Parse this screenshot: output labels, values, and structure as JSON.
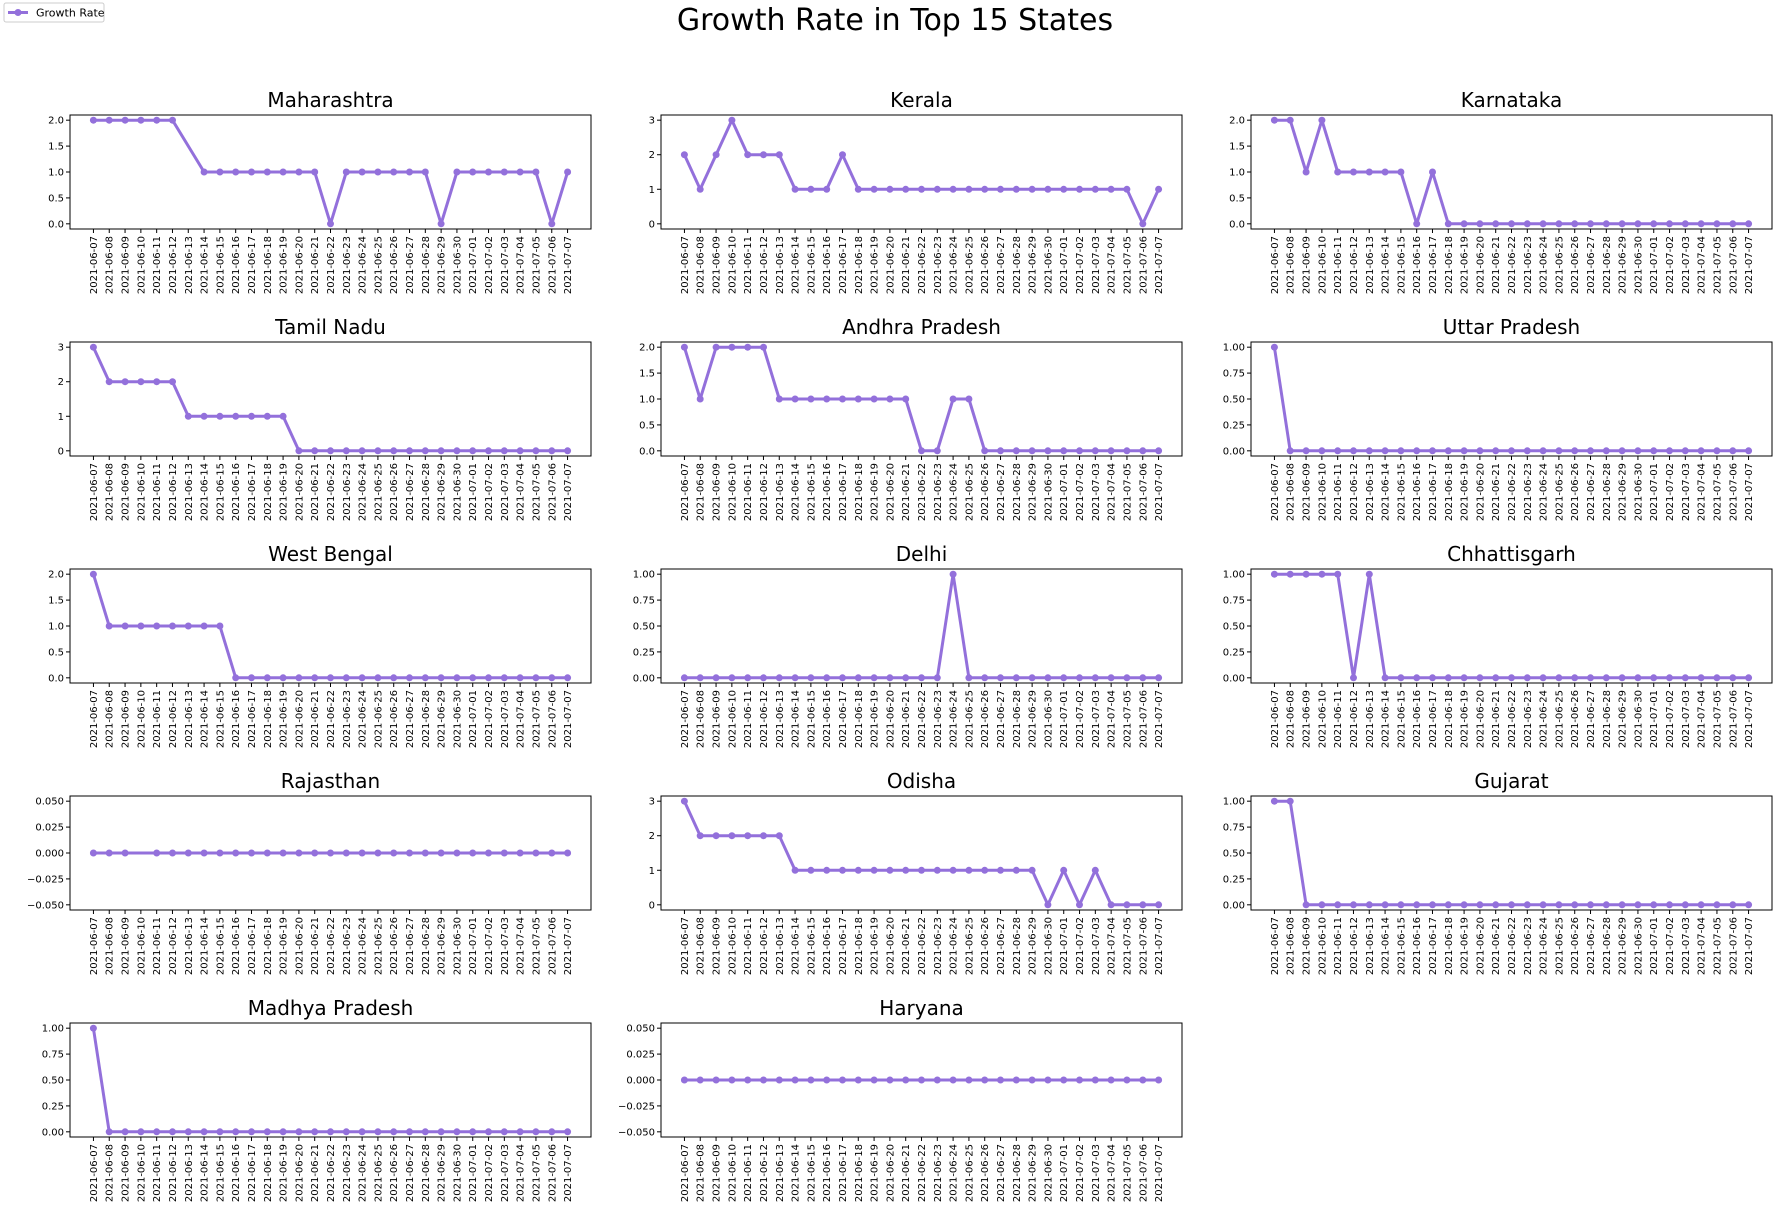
{
  "title": "Growth Rate in Top 15 States",
  "legend": {
    "label": "Growth Rate",
    "position": "top-left"
  },
  "colors": {
    "line": "#9370db",
    "axis": "#000000",
    "text": "#000000"
  },
  "chart_data": {
    "type": "line",
    "dates": [
      "2021-06-07",
      "2021-06-08",
      "2021-06-09",
      "2021-06-10",
      "2021-06-11",
      "2021-06-12",
      "2021-06-13",
      "2021-06-14",
      "2021-06-15",
      "2021-06-16",
      "2021-06-17",
      "2021-06-18",
      "2021-06-19",
      "2021-06-20",
      "2021-06-21",
      "2021-06-22",
      "2021-06-23",
      "2021-06-24",
      "2021-06-25",
      "2021-06-26",
      "2021-06-27",
      "2021-06-28",
      "2021-06-29",
      "2021-06-30",
      "2021-07-01",
      "2021-07-02",
      "2021-07-03",
      "2021-07-04",
      "2021-07-05",
      "2021-07-06",
      "2021-07-07"
    ],
    "grid": false,
    "subplots": [
      {
        "title": "Maharashtra",
        "series": [
          {
            "name": "Growth Rate",
            "x": [
              "2021-06-07",
              "2021-06-08",
              "2021-06-09",
              "2021-06-10",
              "2021-06-11",
              "2021-06-12",
              "2021-06-14",
              "2021-06-15",
              "2021-06-16",
              "2021-06-17",
              "2021-06-18",
              "2021-06-19",
              "2021-06-20",
              "2021-06-21",
              "2021-06-22",
              "2021-06-23",
              "2021-06-24",
              "2021-06-25",
              "2021-06-26",
              "2021-06-27",
              "2021-06-28",
              "2021-06-29",
              "2021-06-30",
              "2021-07-01",
              "2021-07-02",
              "2021-07-03",
              "2021-07-04",
              "2021-07-05",
              "2021-07-06",
              "2021-07-07"
            ],
            "values": [
              2,
              2,
              2,
              2,
              2,
              2,
              1,
              1,
              1,
              1,
              1,
              1,
              1,
              1,
              0,
              1,
              1,
              1,
              1,
              1,
              1,
              0,
              1,
              1,
              1,
              1,
              1,
              1,
              0,
              1
            ]
          }
        ],
        "yticks": [
          0.0,
          0.5,
          1.0,
          1.5,
          2.0
        ],
        "ytick_labels": [
          "0.0",
          "0.5",
          "1.0",
          "1.5",
          "2.0"
        ],
        "ylim": [
          -0.1,
          2.1
        ]
      },
      {
        "title": "Kerala",
        "series": [
          {
            "name": "Growth Rate",
            "x": "all",
            "values": [
              2,
              1,
              2,
              3,
              2,
              2,
              2,
              1,
              1,
              1,
              2,
              1,
              1,
              1,
              1,
              1,
              1,
              1,
              1,
              1,
              1,
              1,
              1,
              1,
              1,
              1,
              1,
              1,
              1,
              0,
              1
            ]
          }
        ],
        "yticks": [
          0,
          1,
          2,
          3
        ],
        "ytick_labels": [
          "0",
          "1",
          "2",
          "3"
        ],
        "ylim": [
          -0.15,
          3.15
        ]
      },
      {
        "title": "Karnataka",
        "series": [
          {
            "name": "Growth Rate",
            "x": "all",
            "values": [
              2,
              2,
              1,
              2,
              1,
              1,
              1,
              1,
              1,
              0,
              1,
              0,
              0,
              0,
              0,
              0,
              0,
              0,
              0,
              0,
              0,
              0,
              0,
              0,
              0,
              0,
              0,
              0,
              0,
              0,
              0
            ]
          }
        ],
        "yticks": [
          0.0,
          0.5,
          1.0,
          1.5,
          2.0
        ],
        "ytick_labels": [
          "0.0",
          "0.5",
          "1.0",
          "1.5",
          "2.0"
        ],
        "ylim": [
          -0.1,
          2.1
        ]
      },
      {
        "title": "Tamil Nadu",
        "series": [
          {
            "name": "Growth Rate",
            "x": [
              "2021-06-07",
              "2021-06-08",
              "2021-06-09",
              "2021-06-10",
              "2021-06-11",
              "2021-06-12",
              "2021-06-13",
              "2021-06-14",
              "2021-06-15",
              "2021-06-16",
              "2021-06-17",
              "2021-06-18",
              "2021-06-19",
              "2021-06-20",
              "2021-06-21",
              "2021-06-22",
              "2021-06-23",
              "2021-06-24",
              "2021-06-25",
              "2021-06-26",
              "2021-06-27",
              "2021-06-28",
              "2021-06-29",
              "2021-06-30",
              "2021-07-01",
              "2021-07-02",
              "2021-07-03",
              "2021-07-04",
              "2021-07-05",
              "2021-07-06",
              "2021-07-07"
            ],
            "values": [
              3,
              2,
              2,
              2,
              2,
              2,
              1,
              1,
              1,
              1,
              1,
              1,
              1,
              0,
              0,
              0,
              0,
              0,
              0,
              0,
              0,
              0,
              0,
              0,
              0,
              0,
              0,
              0,
              0,
              0,
              0
            ]
          }
        ],
        "yticks": [
          0,
          1,
          2,
          3
        ],
        "ytick_labels": [
          "0",
          "1",
          "2",
          "3"
        ],
        "ylim": [
          -0.15,
          3.15
        ]
      },
      {
        "title": "Andhra Pradesh",
        "series": [
          {
            "name": "Growth Rate",
            "x": "all",
            "values": [
              2,
              1,
              2,
              2,
              2,
              2,
              1,
              1,
              1,
              1,
              1,
              1,
              1,
              1,
              1,
              0,
              0,
              1,
              1,
              0,
              0,
              0,
              0,
              0,
              0,
              0,
              0,
              0,
              0,
              0,
              0
            ]
          }
        ],
        "yticks": [
          0.0,
          0.5,
          1.0,
          1.5,
          2.0
        ],
        "ytick_labels": [
          "0.0",
          "0.5",
          "1.0",
          "1.5",
          "2.0"
        ],
        "ylim": [
          -0.1,
          2.1
        ]
      },
      {
        "title": "Uttar Pradesh",
        "series": [
          {
            "name": "Growth Rate",
            "x": "all",
            "values": [
              1,
              0,
              0,
              0,
              0,
              0,
              0,
              0,
              0,
              0,
              0,
              0,
              0,
              0,
              0,
              0,
              0,
              0,
              0,
              0,
              0,
              0,
              0,
              0,
              0,
              0,
              0,
              0,
              0,
              0,
              0
            ]
          }
        ],
        "yticks": [
          0.0,
          0.25,
          0.5,
          0.75,
          1.0
        ],
        "ytick_labels": [
          "0.00",
          "0.25",
          "0.50",
          "0.75",
          "1.00"
        ],
        "ylim": [
          -0.05,
          1.05
        ]
      },
      {
        "title": "West Bengal",
        "series": [
          {
            "name": "Growth Rate",
            "x": [
              "2021-06-07",
              "2021-06-08",
              "2021-06-09",
              "2021-06-10",
              "2021-06-11",
              "2021-06-12",
              "2021-06-13",
              "2021-06-14",
              "2021-06-15",
              "2021-06-16",
              "2021-06-17",
              "2021-06-18",
              "2021-06-19",
              "2021-06-20",
              "2021-06-21",
              "2021-06-22",
              "2021-06-23",
              "2021-06-24",
              "2021-06-25",
              "2021-06-26",
              "2021-06-27",
              "2021-06-28",
              "2021-06-29",
              "2021-06-30",
              "2021-07-01",
              "2021-07-02",
              "2021-07-03",
              "2021-07-04",
              "2021-07-05",
              "2021-07-06",
              "2021-07-07"
            ],
            "values": [
              2,
              1,
              1,
              1,
              1,
              1,
              1,
              1,
              1,
              0,
              0,
              0,
              0,
              0,
              0,
              0,
              0,
              0,
              0,
              0,
              0,
              0,
              0,
              0,
              0,
              0,
              0,
              0,
              0,
              0,
              0
            ]
          }
        ],
        "yticks": [
          0.0,
          0.5,
          1.0,
          1.5,
          2.0
        ],
        "ytick_labels": [
          "0.0",
          "0.5",
          "1.0",
          "1.5",
          "2.0"
        ],
        "ylim": [
          -0.1,
          2.1
        ]
      },
      {
        "title": "Delhi",
        "series": [
          {
            "name": "Growth Rate",
            "x": "all",
            "values": [
              0,
              0,
              0,
              0,
              0,
              0,
              0,
              0,
              0,
              0,
              0,
              0,
              0,
              0,
              0,
              0,
              0,
              1,
              0,
              0,
              0,
              0,
              0,
              0,
              0,
              0,
              0,
              0,
              0,
              0,
              0
            ]
          }
        ],
        "yticks": [
          0.0,
          0.25,
          0.5,
          0.75,
          1.0
        ],
        "ytick_labels": [
          "0.00",
          "0.25",
          "0.50",
          "0.75",
          "1.00"
        ],
        "ylim": [
          -0.05,
          1.05
        ]
      },
      {
        "title": "Chhattisgarh",
        "series": [
          {
            "name": "Growth Rate",
            "x": "all",
            "values": [
              1,
              1,
              1,
              1,
              1,
              0,
              1,
              0,
              0,
              0,
              0,
              0,
              0,
              0,
              0,
              0,
              0,
              0,
              0,
              0,
              0,
              0,
              0,
              0,
              0,
              0,
              0,
              0,
              0,
              0,
              0
            ]
          }
        ],
        "yticks": [
          0.0,
          0.25,
          0.5,
          0.75,
          1.0
        ],
        "ytick_labels": [
          "0.00",
          "0.25",
          "0.50",
          "0.75",
          "1.00"
        ],
        "ylim": [
          -0.05,
          1.05
        ]
      },
      {
        "title": "Rajasthan",
        "series": [
          {
            "name": "Growth Rate",
            "x": [
              "2021-06-07",
              "2021-06-08",
              "2021-06-09",
              "2021-06-11",
              "2021-06-12",
              "2021-06-13",
              "2021-06-14",
              "2021-06-15",
              "2021-06-16",
              "2021-06-17",
              "2021-06-18",
              "2021-06-19",
              "2021-06-20",
              "2021-06-21",
              "2021-06-22",
              "2021-06-23",
              "2021-06-24",
              "2021-06-25",
              "2021-06-26",
              "2021-06-27",
              "2021-06-28",
              "2021-06-29",
              "2021-06-30",
              "2021-07-01",
              "2021-07-02",
              "2021-07-03",
              "2021-07-04",
              "2021-07-05",
              "2021-07-06",
              "2021-07-07"
            ],
            "values": [
              0,
              0,
              0,
              0,
              0,
              0,
              0,
              0,
              0,
              0,
              0,
              0,
              0,
              0,
              0,
              0,
              0,
              0,
              0,
              0,
              0,
              0,
              0,
              0,
              0,
              0,
              0,
              0,
              0,
              0
            ]
          }
        ],
        "yticks": [
          -0.05,
          -0.025,
          0.0,
          0.025,
          0.05
        ],
        "ytick_labels": [
          "−0.050",
          "−0.025",
          "0.000",
          "0.025",
          "0.050"
        ],
        "ylim": [
          -0.055,
          0.055
        ]
      },
      {
        "title": "Odisha",
        "series": [
          {
            "name": "Growth Rate",
            "x": "all",
            "values": [
              3,
              2,
              2,
              2,
              2,
              2,
              2,
              1,
              1,
              1,
              1,
              1,
              1,
              1,
              1,
              1,
              1,
              1,
              1,
              1,
              1,
              1,
              1,
              0,
              1,
              0,
              1,
              0,
              0,
              0,
              0
            ]
          }
        ],
        "yticks": [
          0,
          1,
          2,
          3
        ],
        "ytick_labels": [
          "0",
          "1",
          "2",
          "3"
        ],
        "ylim": [
          -0.15,
          3.15
        ]
      },
      {
        "title": "Gujarat",
        "series": [
          {
            "name": "Growth Rate",
            "x": "all",
            "values": [
              1,
              1,
              0,
              0,
              0,
              0,
              0,
              0,
              0,
              0,
              0,
              0,
              0,
              0,
              0,
              0,
              0,
              0,
              0,
              0,
              0,
              0,
              0,
              0,
              0,
              0,
              0,
              0,
              0,
              0,
              0
            ]
          }
        ],
        "yticks": [
          0.0,
          0.25,
          0.5,
          0.75,
          1.0
        ],
        "ytick_labels": [
          "0.00",
          "0.25",
          "0.50",
          "0.75",
          "1.00"
        ],
        "ylim": [
          -0.05,
          1.05
        ]
      },
      {
        "title": "Madhya Pradesh",
        "series": [
          {
            "name": "Growth Rate",
            "x": [
              "2021-06-07",
              "2021-06-08",
              "2021-06-09",
              "2021-06-10",
              "2021-06-11",
              "2021-06-12",
              "2021-06-13",
              "2021-06-14",
              "2021-06-15",
              "2021-06-16",
              "2021-06-17",
              "2021-06-18",
              "2021-06-19",
              "2021-06-20",
              "2021-06-21",
              "2021-06-22",
              "2021-06-23",
              "2021-06-24",
              "2021-06-25",
              "2021-06-26",
              "2021-06-27",
              "2021-06-28",
              "2021-06-29",
              "2021-06-30",
              "2021-07-01",
              "2021-07-02",
              "2021-07-03",
              "2021-07-04",
              "2021-07-05",
              "2021-07-06",
              "2021-07-07"
            ],
            "values": [
              1,
              0,
              0,
              0,
              0,
              0,
              0,
              0,
              0,
              0,
              0,
              0,
              0,
              0,
              0,
              0,
              0,
              0,
              0,
              0,
              0,
              0,
              0,
              0,
              0,
              0,
              0,
              0,
              0,
              0,
              0
            ]
          }
        ],
        "yticks": [
          0.0,
          0.25,
          0.5,
          0.75,
          1.0
        ],
        "ytick_labels": [
          "0.00",
          "0.25",
          "0.50",
          "0.75",
          "1.00"
        ],
        "ylim": [
          -0.05,
          1.05
        ]
      },
      {
        "title": "Haryana",
        "series": [
          {
            "name": "Growth Rate",
            "x": "all",
            "values": [
              0,
              0,
              0,
              0,
              0,
              0,
              0,
              0,
              0,
              0,
              0,
              0,
              0,
              0,
              0,
              0,
              0,
              0,
              0,
              0,
              0,
              0,
              0,
              0,
              0,
              0,
              0,
              0,
              0,
              0,
              0
            ]
          }
        ],
        "yticks": [
          -0.05,
          -0.025,
          0.0,
          0.025,
          0.05
        ],
        "ytick_labels": [
          "−0.050",
          "−0.025",
          "0.000",
          "0.025",
          "0.050"
        ],
        "ylim": [
          -0.055,
          0.055
        ]
      }
    ]
  }
}
